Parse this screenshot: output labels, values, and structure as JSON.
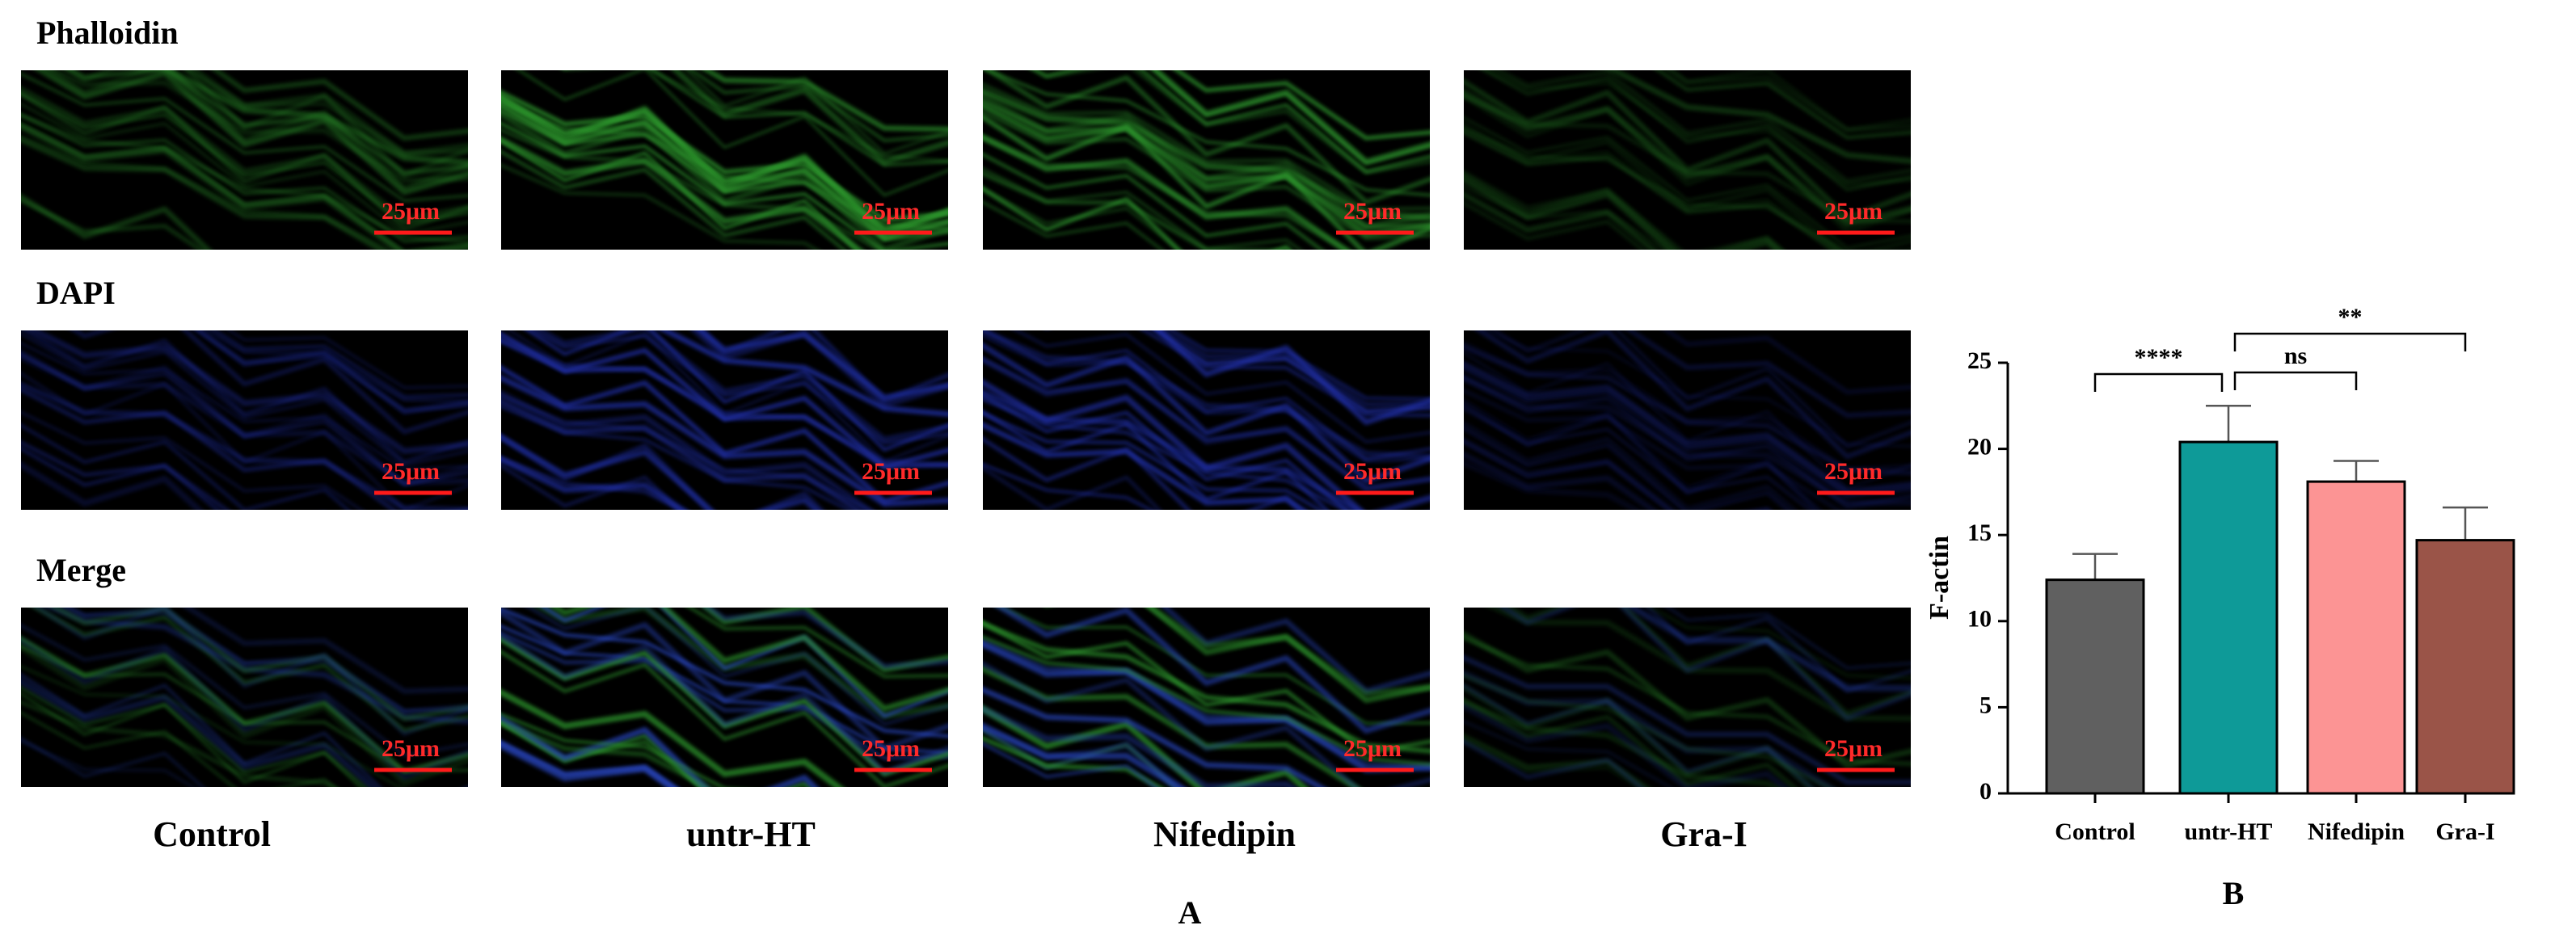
{
  "panel_a": {
    "row_labels": [
      "Phalloidin",
      "DAPI",
      "Merge"
    ],
    "column_labels": [
      "Control",
      "untr-HT",
      "Nifedipin",
      "Gra-I"
    ],
    "scale_bar_label": "25μm",
    "label": "A"
  },
  "chart_data": {
    "type": "bar",
    "label": "B",
    "y_label": "F-actin",
    "categories": [
      "Control",
      "untr-HT",
      "Nifedipin",
      "Gra-I"
    ],
    "values": [
      12.4,
      20.4,
      18.1,
      14.7
    ],
    "errors": [
      1.5,
      2.1,
      1.2,
      1.9
    ],
    "colors": [
      "#606060",
      "#0e9a98",
      "#fc9494",
      "#9a5448"
    ],
    "ylim": [
      0,
      25
    ],
    "yticks": [
      0,
      5,
      10,
      15,
      20,
      25
    ],
    "significance": [
      {
        "from": 0,
        "to": 1,
        "label": "****"
      },
      {
        "from": 1,
        "to": 2,
        "label": "ns"
      },
      {
        "from": 1,
        "to": 3,
        "label": "**"
      }
    ]
  }
}
